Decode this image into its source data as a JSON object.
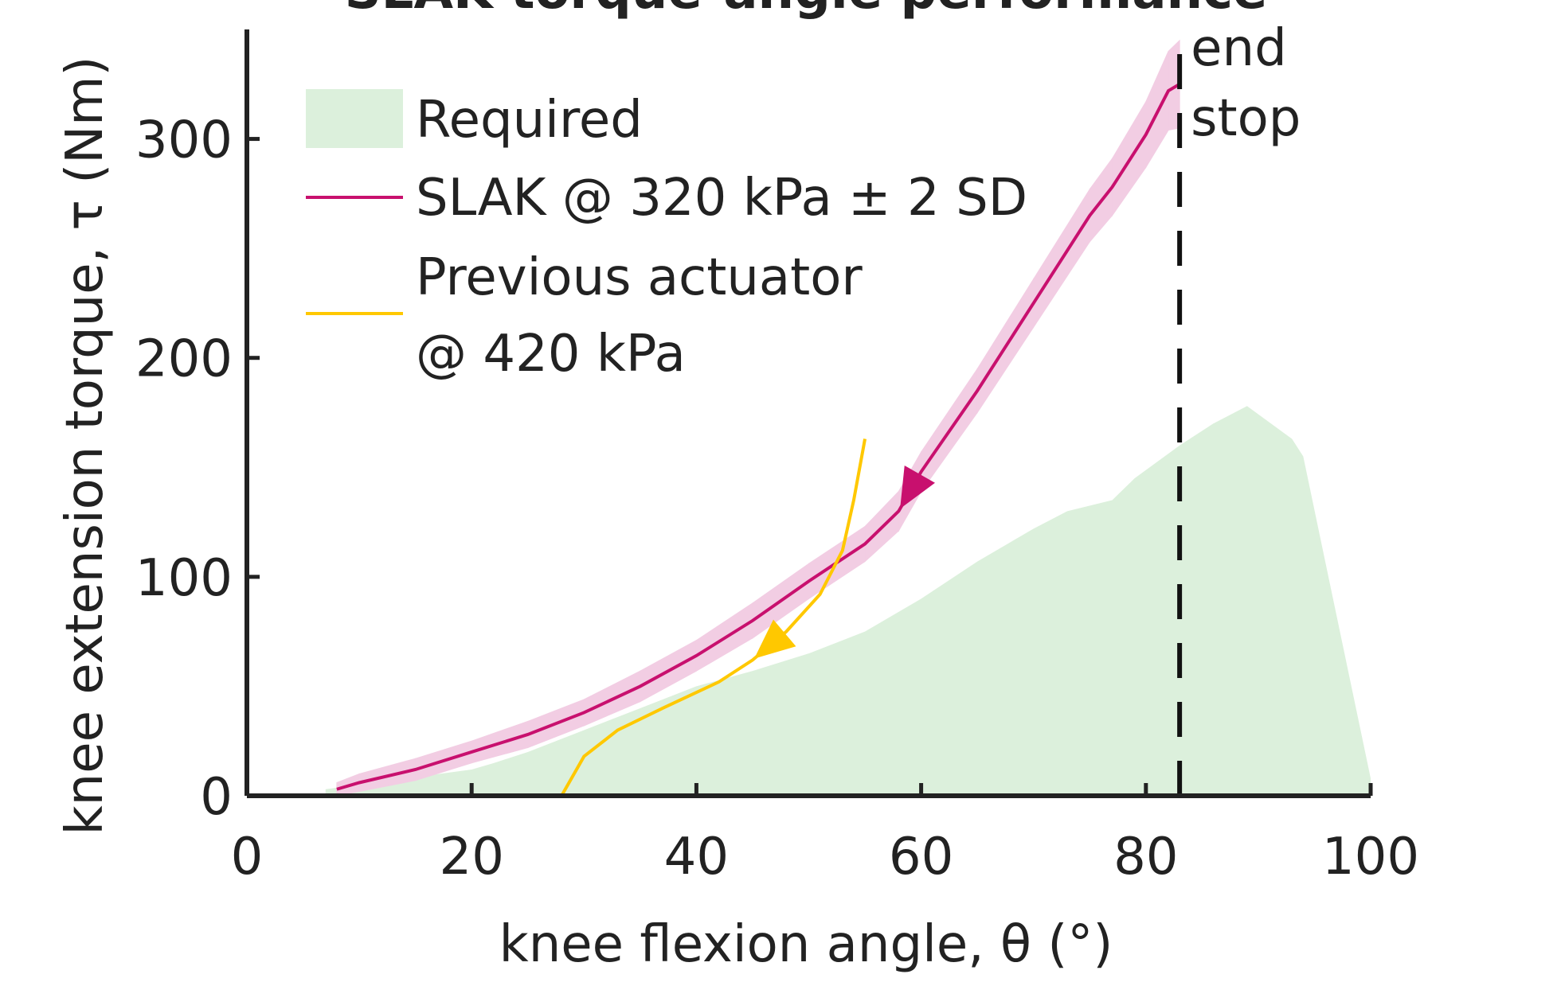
{
  "chart_data": {
    "type": "line",
    "title": "SLAK torque-angle performance",
    "xlabel": "knee flexion angle, θ (°)",
    "ylabel": "knee extension torque, τ (Nm)",
    "xlim": [
      0,
      100
    ],
    "xticks": [
      0,
      20,
      40,
      60,
      80,
      100
    ],
    "ylim": [
      0,
      350
    ],
    "yticks": [
      0,
      100,
      200,
      300
    ],
    "series": [
      {
        "name": "Required",
        "kind": "area",
        "color": "#dcf0dc",
        "x": [
          7,
          20,
          22,
          25,
          30,
          35,
          40,
          45,
          50,
          55,
          60,
          65,
          70,
          73,
          77,
          79,
          83,
          86,
          89,
          93,
          94,
          100
        ],
        "values": [
          3,
          12,
          15,
          20,
          30,
          40,
          50,
          57,
          65,
          75,
          90,
          107,
          122,
          130,
          135,
          145,
          160,
          170,
          178,
          163,
          155,
          8
        ]
      },
      {
        "name": "SLAK @ 320 kPa ± 2 SD",
        "kind": "line",
        "color": "#c8106e",
        "band_color": "#f2cde3",
        "x": [
          8,
          10,
          15,
          20,
          25,
          30,
          35,
          40,
          45,
          50,
          55,
          58,
          60,
          65,
          70,
          75,
          77,
          80,
          82,
          83
        ],
        "values": [
          3,
          6,
          12,
          20,
          28,
          38,
          50,
          64,
          80,
          98,
          115,
          130,
          148,
          185,
          225,
          265,
          278,
          302,
          322,
          325
        ],
        "errors": [
          3,
          4,
          5,
          5,
          6,
          6,
          7,
          7,
          8,
          8,
          8,
          9,
          9,
          10,
          11,
          12,
          13,
          15,
          18,
          20
        ]
      },
      {
        "name": [
          "Previous actuator",
          "@ 420 kPa"
        ],
        "kind": "line",
        "color": "#ffc800",
        "x": [
          28,
          30,
          33,
          37,
          42,
          45,
          48,
          51,
          53,
          54,
          55
        ],
        "values": [
          0,
          18,
          30,
          40,
          52,
          62,
          75,
          92,
          112,
          135,
          163
        ]
      }
    ],
    "vline": {
      "x": 83,
      "label": [
        "end",
        "stop"
      ]
    }
  }
}
